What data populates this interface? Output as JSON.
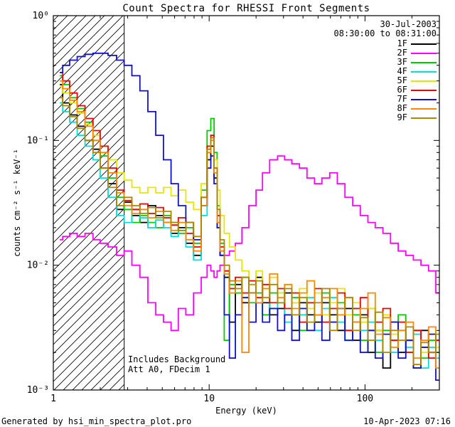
{
  "title": "Count Spectra for RHESSI Front Segments",
  "header": {
    "date": "30-Jul-2003",
    "time_range": "08:30:00 to 08:31:00"
  },
  "axes": {
    "x_label": "Energy (keV)",
    "y_label": "counts cm⁻² s⁻¹ keV⁻¹",
    "x_ticks": [
      {
        "value": 1,
        "label": "1"
      },
      {
        "value": 10,
        "label": "10"
      },
      {
        "value": 100,
        "label": "100"
      }
    ],
    "y_ticks": [
      {
        "value": 1,
        "label": "10⁰"
      },
      {
        "value": 0.1,
        "label": "10⁻¹"
      },
      {
        "value": 0.01,
        "label": "10⁻²"
      },
      {
        "value": 0.001,
        "label": "10⁻³"
      }
    ]
  },
  "annotations": {
    "background": "Includes Background",
    "atten": "Att A0, FDecim 1"
  },
  "footer": {
    "generated_by": "Generated by hsi_min_spectra_plot.pro",
    "timestamp": "10-Apr-2023 07:16"
  },
  "chart_data": {
    "type": "line",
    "style": "step-histogram",
    "x_scale": "log",
    "y_scale": "log",
    "xlim": [
      1,
      300
    ],
    "ylim": [
      0.001,
      1
    ],
    "grid": false,
    "legend_position": "top-right",
    "hatch_region": {
      "x_start": 1,
      "x_end": 2.85
    },
    "x": [
      1.1,
      1.2,
      1.35,
      1.5,
      1.7,
      1.9,
      2.1,
      2.4,
      2.7,
      3.0,
      3.4,
      3.8,
      4.3,
      4.8,
      5.4,
      6.0,
      6.7,
      7.5,
      8.4,
      9.4,
      10.0,
      10.5,
      11.0,
      11.5,
      12.0,
      13.0,
      14.0,
      15.5,
      17.0,
      19.0,
      21.0,
      23.0,
      26.0,
      29.0,
      32.0,
      36.0,
      40.0,
      45.0,
      50.0,
      56.0,
      63.0,
      70.0,
      79.0,
      88.0,
      99.0,
      110.0,
      123.0,
      138.0,
      154.0,
      173.0,
      193.0,
      216.0,
      242.0,
      270.0,
      300.0
    ],
    "series": [
      {
        "name": "1F",
        "color": "#000000",
        "y": [
          0.28,
          0.2,
          0.16,
          0.13,
          0.1,
          0.085,
          0.06,
          0.045,
          0.028,
          0.032,
          0.025,
          0.022,
          0.03,
          0.025,
          0.022,
          0.018,
          0.02,
          0.015,
          0.012,
          0.03,
          0.07,
          0.09,
          0.05,
          0.02,
          0.012,
          0.008,
          0.0035,
          0.007,
          0.005,
          0.006,
          0.008,
          0.005,
          0.004,
          0.0045,
          0.006,
          0.003,
          0.005,
          0.004,
          0.0035,
          0.005,
          0.004,
          0.003,
          0.0045,
          0.0025,
          0.004,
          0.002,
          0.003,
          0.0015,
          0.0035,
          0.002,
          0.0025,
          0.0015,
          0.003,
          0.002,
          0.0025
        ]
      },
      {
        "name": "2F",
        "color": "#ff00ff",
        "y": [
          0.016,
          0.017,
          0.018,
          0.017,
          0.018,
          0.016,
          0.015,
          0.014,
          0.012,
          0.013,
          0.01,
          0.008,
          0.005,
          0.004,
          0.0035,
          0.003,
          0.0045,
          0.004,
          0.006,
          0.008,
          0.01,
          0.009,
          0.008,
          0.009,
          0.01,
          0.012,
          0.013,
          0.015,
          0.02,
          0.03,
          0.04,
          0.055,
          0.07,
          0.075,
          0.07,
          0.065,
          0.06,
          0.05,
          0.045,
          0.05,
          0.055,
          0.045,
          0.035,
          0.03,
          0.025,
          0.022,
          0.02,
          0.018,
          0.015,
          0.013,
          0.012,
          0.011,
          0.01,
          0.009,
          0.006
        ]
      },
      {
        "name": "3F",
        "color": "#00cc00",
        "y": [
          0.33,
          0.28,
          0.22,
          0.18,
          0.14,
          0.1,
          0.075,
          0.05,
          0.035,
          0.028,
          0.022,
          0.025,
          0.022,
          0.02,
          0.025,
          0.022,
          0.018,
          0.02,
          0.015,
          0.04,
          0.12,
          0.15,
          0.08,
          0.03,
          0.015,
          0.0025,
          0.007,
          0.006,
          0.008,
          0.005,
          0.006,
          0.004,
          0.006,
          0.005,
          0.004,
          0.0055,
          0.003,
          0.005,
          0.004,
          0.006,
          0.0035,
          0.005,
          0.003,
          0.004,
          0.0025,
          0.0045,
          0.002,
          0.003,
          0.0025,
          0.004,
          0.002,
          0.003,
          0.0018,
          0.0025,
          0.002
        ]
      },
      {
        "name": "4F",
        "color": "#00dddd",
        "y": [
          0.2,
          0.17,
          0.14,
          0.11,
          0.09,
          0.07,
          0.05,
          0.035,
          0.025,
          0.022,
          0.028,
          0.024,
          0.02,
          0.023,
          0.02,
          0.017,
          0.019,
          0.014,
          0.011,
          0.025,
          0.08,
          0.1,
          0.06,
          0.025,
          0.013,
          0.009,
          0.0065,
          0.0075,
          0.0055,
          0.007,
          0.005,
          0.0065,
          0.0045,
          0.006,
          0.0035,
          0.005,
          0.004,
          0.0055,
          0.003,
          0.0045,
          0.0055,
          0.0035,
          0.0025,
          0.0045,
          0.003,
          0.0035,
          0.0025,
          0.004,
          0.002,
          0.003,
          0.0022,
          0.0028,
          0.0015,
          0.0022,
          0.0018
        ]
      },
      {
        "name": "5F",
        "color": "#e6e600",
        "y": [
          0.27,
          0.24,
          0.2,
          0.165,
          0.135,
          0.11,
          0.09,
          0.07,
          0.055,
          0.048,
          0.042,
          0.038,
          0.042,
          0.038,
          0.042,
          0.036,
          0.04,
          0.032,
          0.028,
          0.045,
          0.09,
          0.11,
          0.07,
          0.04,
          0.025,
          0.018,
          0.014,
          0.011,
          0.009,
          0.0075,
          0.009,
          0.0065,
          0.008,
          0.006,
          0.007,
          0.005,
          0.0065,
          0.0045,
          0.006,
          0.004,
          0.005,
          0.0065,
          0.004,
          0.005,
          0.0035,
          0.0045,
          0.003,
          0.004,
          0.0028,
          0.0035,
          0.0025,
          0.003,
          0.002,
          0.0028,
          0.0022
        ]
      },
      {
        "name": "6F",
        "color": "#ee0000",
        "y": [
          0.35,
          0.3,
          0.24,
          0.19,
          0.15,
          0.12,
          0.09,
          0.06,
          0.04,
          0.033,
          0.028,
          0.031,
          0.026,
          0.029,
          0.024,
          0.021,
          0.024,
          0.018,
          0.014,
          0.035,
          0.09,
          0.11,
          0.06,
          0.025,
          0.014,
          0.009,
          0.0065,
          0.008,
          0.006,
          0.0075,
          0.0055,
          0.007,
          0.005,
          0.0065,
          0.0045,
          0.006,
          0.0035,
          0.005,
          0.0065,
          0.0035,
          0.0045,
          0.006,
          0.003,
          0.0045,
          0.0055,
          0.003,
          0.0035,
          0.0045,
          0.0025,
          0.0035,
          0.002,
          0.003,
          0.0022,
          0.0018,
          0.0025
        ]
      },
      {
        "name": "7F",
        "color": "#1111cc",
        "y": [
          0.35,
          0.4,
          0.44,
          0.47,
          0.49,
          0.5,
          0.5,
          0.48,
          0.44,
          0.4,
          0.33,
          0.25,
          0.17,
          0.11,
          0.07,
          0.045,
          0.03,
          0.022,
          0.016,
          0.03,
          0.06,
          0.075,
          0.045,
          0.02,
          0.012,
          0.004,
          0.0018,
          0.004,
          0.0055,
          0.0035,
          0.005,
          0.0035,
          0.0045,
          0.003,
          0.004,
          0.0025,
          0.0045,
          0.003,
          0.004,
          0.0025,
          0.0035,
          0.0045,
          0.0025,
          0.0035,
          0.002,
          0.003,
          0.0018,
          0.0028,
          0.0035,
          0.0018,
          0.0025,
          0.0015,
          0.0022,
          0.0028,
          0.0012
        ]
      },
      {
        "name": "8F",
        "color": "#ff8800",
        "y": [
          0.3,
          0.26,
          0.21,
          0.17,
          0.13,
          0.1,
          0.08,
          0.055,
          0.038,
          0.03,
          0.026,
          0.028,
          0.024,
          0.027,
          0.022,
          0.019,
          0.022,
          0.016,
          0.013,
          0.03,
          0.08,
          0.1,
          0.055,
          0.022,
          0.013,
          0.0085,
          0.006,
          0.0075,
          0.002,
          0.007,
          0.005,
          0.0065,
          0.0085,
          0.0055,
          0.007,
          0.0045,
          0.006,
          0.0075,
          0.004,
          0.0055,
          0.0065,
          0.004,
          0.0055,
          0.0035,
          0.0045,
          0.006,
          0.0028,
          0.0038,
          0.0022,
          0.003,
          0.0035,
          0.0018,
          0.0025,
          0.0032,
          0.0015
        ]
      },
      {
        "name": "9F",
        "color": "#aa8800",
        "y": [
          0.22,
          0.19,
          0.155,
          0.125,
          0.1,
          0.08,
          0.06,
          0.042,
          0.03,
          0.035,
          0.03,
          0.026,
          0.029,
          0.024,
          0.027,
          0.022,
          0.019,
          0.022,
          0.017,
          0.035,
          0.085,
          0.105,
          0.06,
          0.028,
          0.016,
          0.01,
          0.0075,
          0.0065,
          0.008,
          0.006,
          0.0075,
          0.0055,
          0.007,
          0.005,
          0.0065,
          0.004,
          0.0055,
          0.0035,
          0.005,
          0.0065,
          0.003,
          0.0045,
          0.0055,
          0.003,
          0.0038,
          0.0025,
          0.0042,
          0.002,
          0.003,
          0.0025,
          0.0032,
          0.0016,
          0.0024,
          0.002,
          0.0028
        ]
      }
    ]
  }
}
